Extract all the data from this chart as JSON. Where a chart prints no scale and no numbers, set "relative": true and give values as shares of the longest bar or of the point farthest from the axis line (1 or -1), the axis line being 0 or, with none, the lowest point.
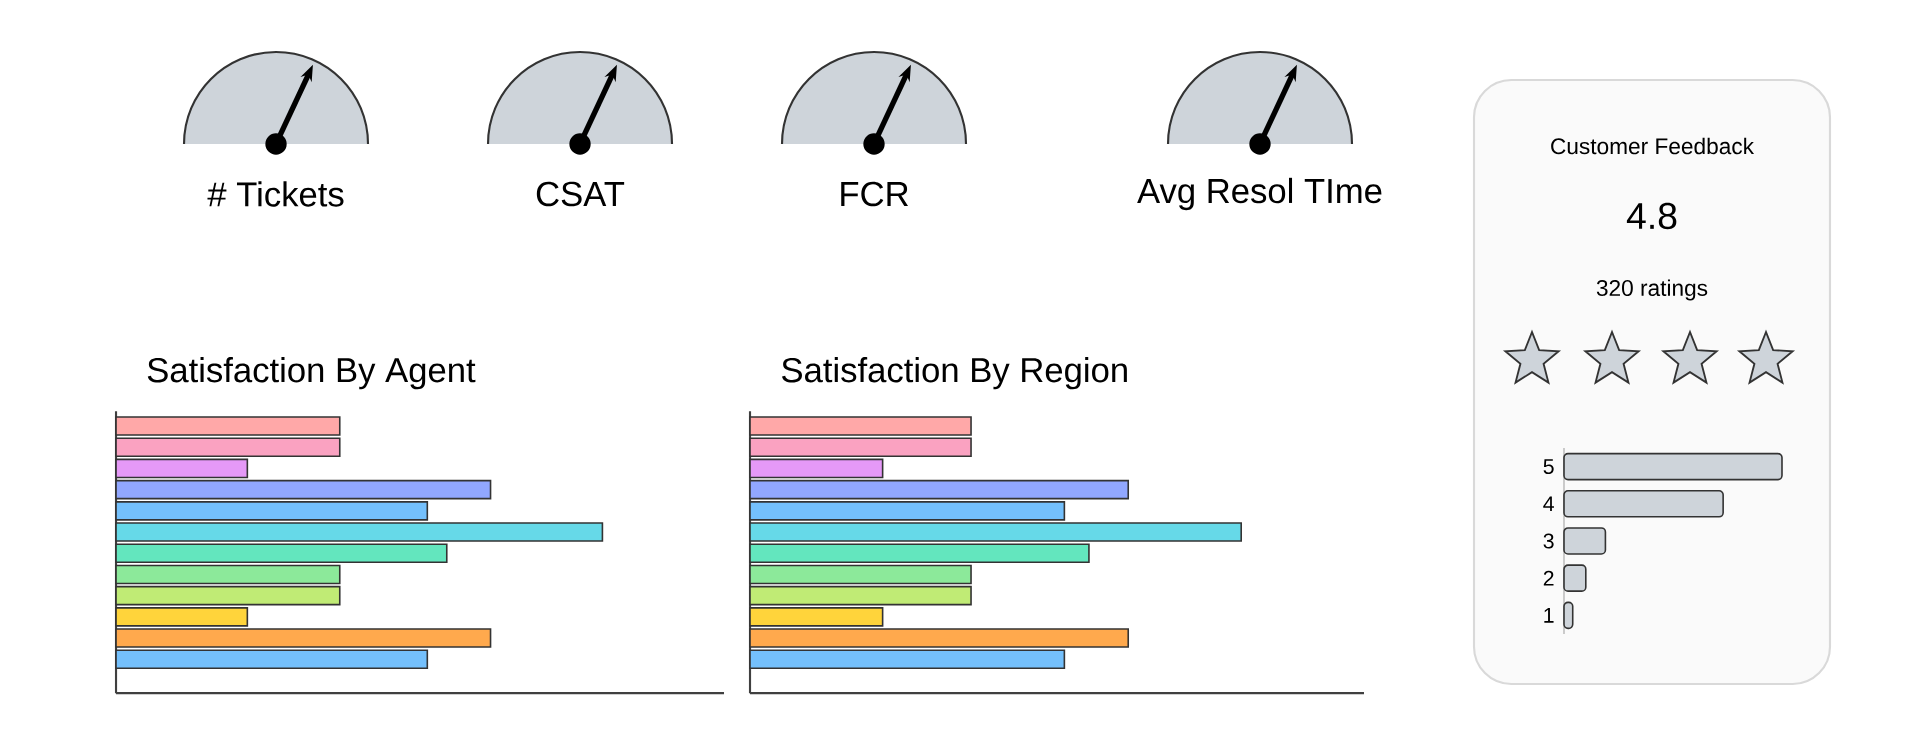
{
  "chart_data": [
    {
      "type": "other",
      "title": "# Tickets"
    },
    {
      "type": "other",
      "title": "CSAT"
    },
    {
      "type": "other",
      "title": "FCR"
    },
    {
      "type": "other",
      "title": "Avg Resol TIme"
    },
    {
      "type": "bar",
      "orientation": "horizontal",
      "relative": true,
      "tick_labels": false,
      "title": "Satisfaction By Agent",
      "categories": [
        null,
        null,
        null,
        null,
        null,
        null,
        null,
        null,
        null,
        null,
        null,
        null
      ],
      "values": [
        0.46,
        0.46,
        0.27,
        0.77,
        0.64,
        1,
        0.68,
        0.46,
        0.46,
        0.27,
        0.77,
        0.64
      ],
      "colors": [
        "#ffa8a8",
        "#faa2c1",
        "#e599f7",
        "#91a7ff",
        "#74c0fc",
        "#66d9e8",
        "#63e6be",
        "#8ce99a",
        "#c0eb75",
        "#ffd43b",
        "#ffa94d",
        "#74c0fc"
      ]
    },
    {
      "type": "bar",
      "orientation": "horizontal",
      "relative": true,
      "tick_labels": false,
      "title": "Satisfaction By Region",
      "categories": [
        null,
        null,
        null,
        null,
        null,
        null,
        null,
        null,
        null,
        null,
        null,
        null
      ],
      "values": [
        0.45,
        0.45,
        0.27,
        0.77,
        0.64,
        1,
        0.69,
        0.45,
        0.45,
        0.27,
        0.77,
        0.64
      ],
      "colors": [
        "#ffa8a8",
        "#faa2c1",
        "#e599f7",
        "#91a7ff",
        "#74c0fc",
        "#66d9e8",
        "#63e6be",
        "#8ce99a",
        "#c0eb75",
        "#ffd43b",
        "#ffa94d",
        "#74c0fc"
      ]
    },
    {
      "type": "bar",
      "orientation": "horizontal",
      "relative": true,
      "tick_labels": "y",
      "title": "Customer Feedback",
      "annotations": [
        "4.8",
        "320 ratings"
      ],
      "categories": [
        "5",
        "4",
        "3",
        "2",
        "1"
      ],
      "values": [
        1,
        0.73,
        0.19,
        0.1,
        0.04
      ],
      "color": "#ced4da"
    }
  ]
}
